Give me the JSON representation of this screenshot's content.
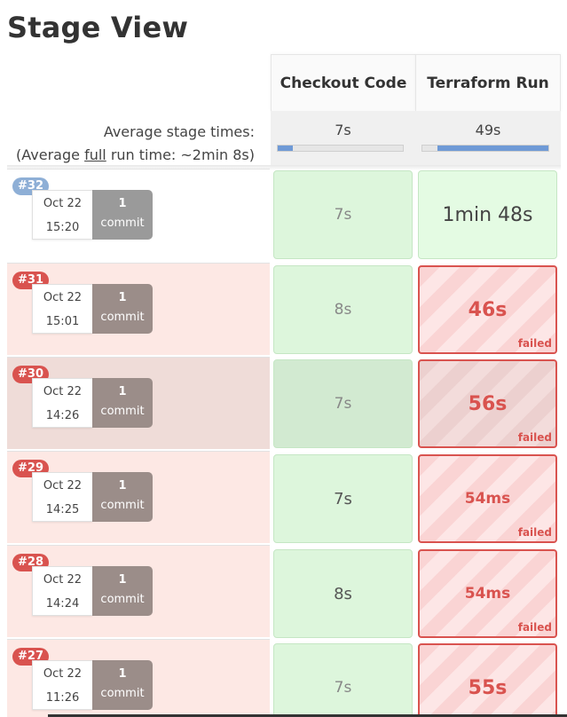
{
  "page": {
    "title": "Stage View"
  },
  "stages": [
    {
      "name": "Checkout Code",
      "avg_time": "7s",
      "avg_fraction": 0.12
    },
    {
      "name": "Terraform Run",
      "avg_time": "49s",
      "avg_fraction": 0.88
    }
  ],
  "averages": {
    "label": "Average stage times:",
    "full_prefix": "(Average ",
    "full_word": "full",
    "full_suffix": " run time: ~2min 8s)"
  },
  "runs": [
    {
      "id": "#32",
      "date": "Oct 22",
      "time": "15:20",
      "commits": "1",
      "commit_label": "commit",
      "status": "success",
      "stages": [
        {
          "duration": "7s",
          "status": "success"
        },
        {
          "duration": "1min 48s",
          "status": "success"
        }
      ]
    },
    {
      "id": "#31",
      "date": "Oct 22",
      "time": "15:01",
      "commits": "1",
      "commit_label": "commit",
      "status": "failed",
      "stages": [
        {
          "duration": "8s",
          "status": "success"
        },
        {
          "duration": "46s",
          "status": "failed",
          "flag": "failed"
        }
      ]
    },
    {
      "id": "#30",
      "date": "Oct 22",
      "time": "14:26",
      "commits": "1",
      "commit_label": "commit",
      "status": "failed",
      "stages": [
        {
          "duration": "7s",
          "status": "success"
        },
        {
          "duration": "56s",
          "status": "failed",
          "flag": "failed"
        }
      ]
    },
    {
      "id": "#29",
      "date": "Oct 22",
      "time": "14:25",
      "commits": "1",
      "commit_label": "commit",
      "status": "failed",
      "stages": [
        {
          "duration": "7s",
          "status": "success"
        },
        {
          "duration": "54ms",
          "status": "failed",
          "flag": "failed"
        }
      ]
    },
    {
      "id": "#28",
      "date": "Oct 22",
      "time": "14:24",
      "commits": "1",
      "commit_label": "commit",
      "status": "failed",
      "stages": [
        {
          "duration": "8s",
          "status": "success"
        },
        {
          "duration": "54ms",
          "status": "failed",
          "flag": "failed"
        }
      ]
    },
    {
      "id": "#27",
      "date": "Oct 22",
      "time": "11:26",
      "commits": "1",
      "commit_label": "commit",
      "status": "failed",
      "stages": [
        {
          "duration": "7s",
          "status": "success"
        },
        {
          "duration": "55s",
          "status": "failed",
          "flag": ""
        }
      ]
    }
  ],
  "colors": {
    "success": "#ddf6dc",
    "failed": "#d9534f",
    "bar": "#6f9ad6",
    "badge_success": "#8eafd6"
  }
}
